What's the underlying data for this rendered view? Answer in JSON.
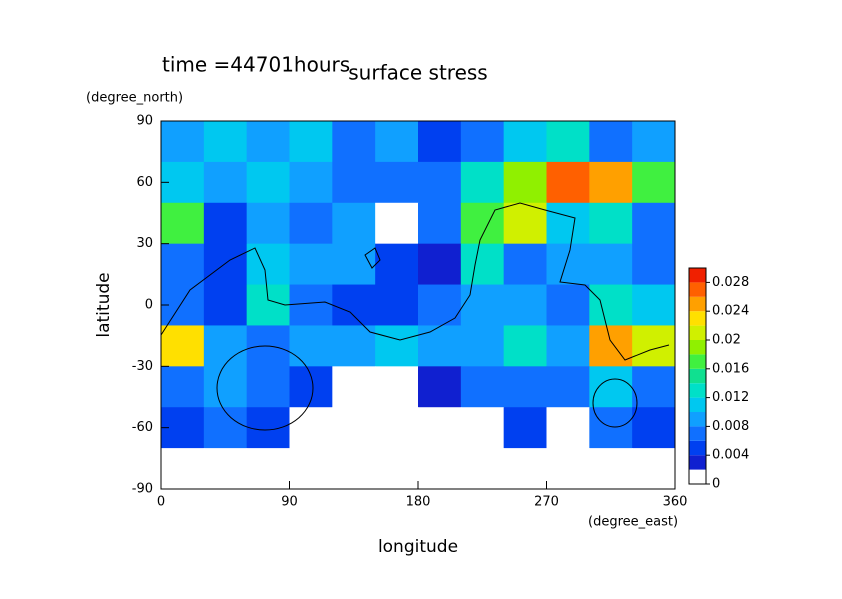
{
  "chart_data": {
    "type": "heatmap",
    "title": "surface stress",
    "subtitle": "time =44701hours",
    "y_unit": "(degree_north)",
    "ylabel": "latitude",
    "xlabel": "longitude",
    "x_unit": "(degree_east)",
    "xlim": [
      0,
      360
    ],
    "ylim": [
      -90,
      90
    ],
    "xticks": [
      0,
      90,
      180,
      270,
      360
    ],
    "yticks": [
      -90,
      -60,
      -30,
      0,
      30,
      60,
      90
    ],
    "x": [
      15,
      45,
      75,
      105,
      135,
      165,
      195,
      225,
      255,
      285,
      315,
      345
    ],
    "y": [
      80,
      60,
      40,
      20,
      0,
      -20,
      -40,
      -60,
      -80
    ],
    "z": [
      [
        0.008,
        0.01,
        0.008,
        0.01,
        0.006,
        0.008,
        0.004,
        0.006,
        0.01,
        0.012,
        0.006,
        0.008
      ],
      [
        0.01,
        0.008,
        0.01,
        0.008,
        0.006,
        0.006,
        0.006,
        0.012,
        0.018,
        0.026,
        0.024,
        0.016
      ],
      [
        0.016,
        0.004,
        0.008,
        0.006,
        0.008,
        0,
        0.006,
        0.016,
        0.02,
        0.01,
        0.012,
        0.006
      ],
      [
        0.006,
        0.004,
        0.01,
        0.008,
        0.008,
        0.004,
        0.002,
        0.012,
        0.006,
        0.008,
        0.008,
        0.006
      ],
      [
        0.006,
        0.004,
        0.012,
        0.006,
        0.004,
        0.004,
        0.006,
        0.008,
        0.008,
        0.006,
        0.012,
        0.01
      ],
      [
        0.022,
        0.008,
        0.006,
        0.008,
        0.008,
        0.01,
        0.008,
        0.008,
        0.012,
        0.008,
        0.024,
        0.02
      ],
      [
        0.006,
        0.008,
        0.006,
        0.004,
        0,
        0,
        0.002,
        0.006,
        0.006,
        0.006,
        0.01,
        0.006
      ],
      [
        0.004,
        0.006,
        0.004,
        0,
        0,
        0,
        0,
        0,
        0.004,
        0,
        0.006,
        0.004
      ],
      [
        0,
        0,
        0,
        0,
        0,
        0,
        0,
        0,
        0,
        0,
        0,
        0
      ]
    ],
    "levels": [
      0,
      0.002,
      0.004,
      0.006,
      0.008,
      0.01,
      0.012,
      0.014,
      0.016,
      0.018,
      0.02,
      0.022,
      0.024,
      0.026,
      0.028,
      0.03
    ],
    "colors": [
      "#ffffff",
      "#1020d0",
      "#0040f0",
      "#1070ff",
      "#10a0ff",
      "#00c8f0",
      "#00e0c8",
      "#10e090",
      "#40f040",
      "#90f000",
      "#d0f000",
      "#ffe000",
      "#ffa000",
      "#ff6000",
      "#f02000"
    ],
    "colorbar_ticks": [
      0,
      0.004,
      0.008,
      0.012,
      0.016,
      0.02,
      0.024,
      0.028
    ]
  }
}
